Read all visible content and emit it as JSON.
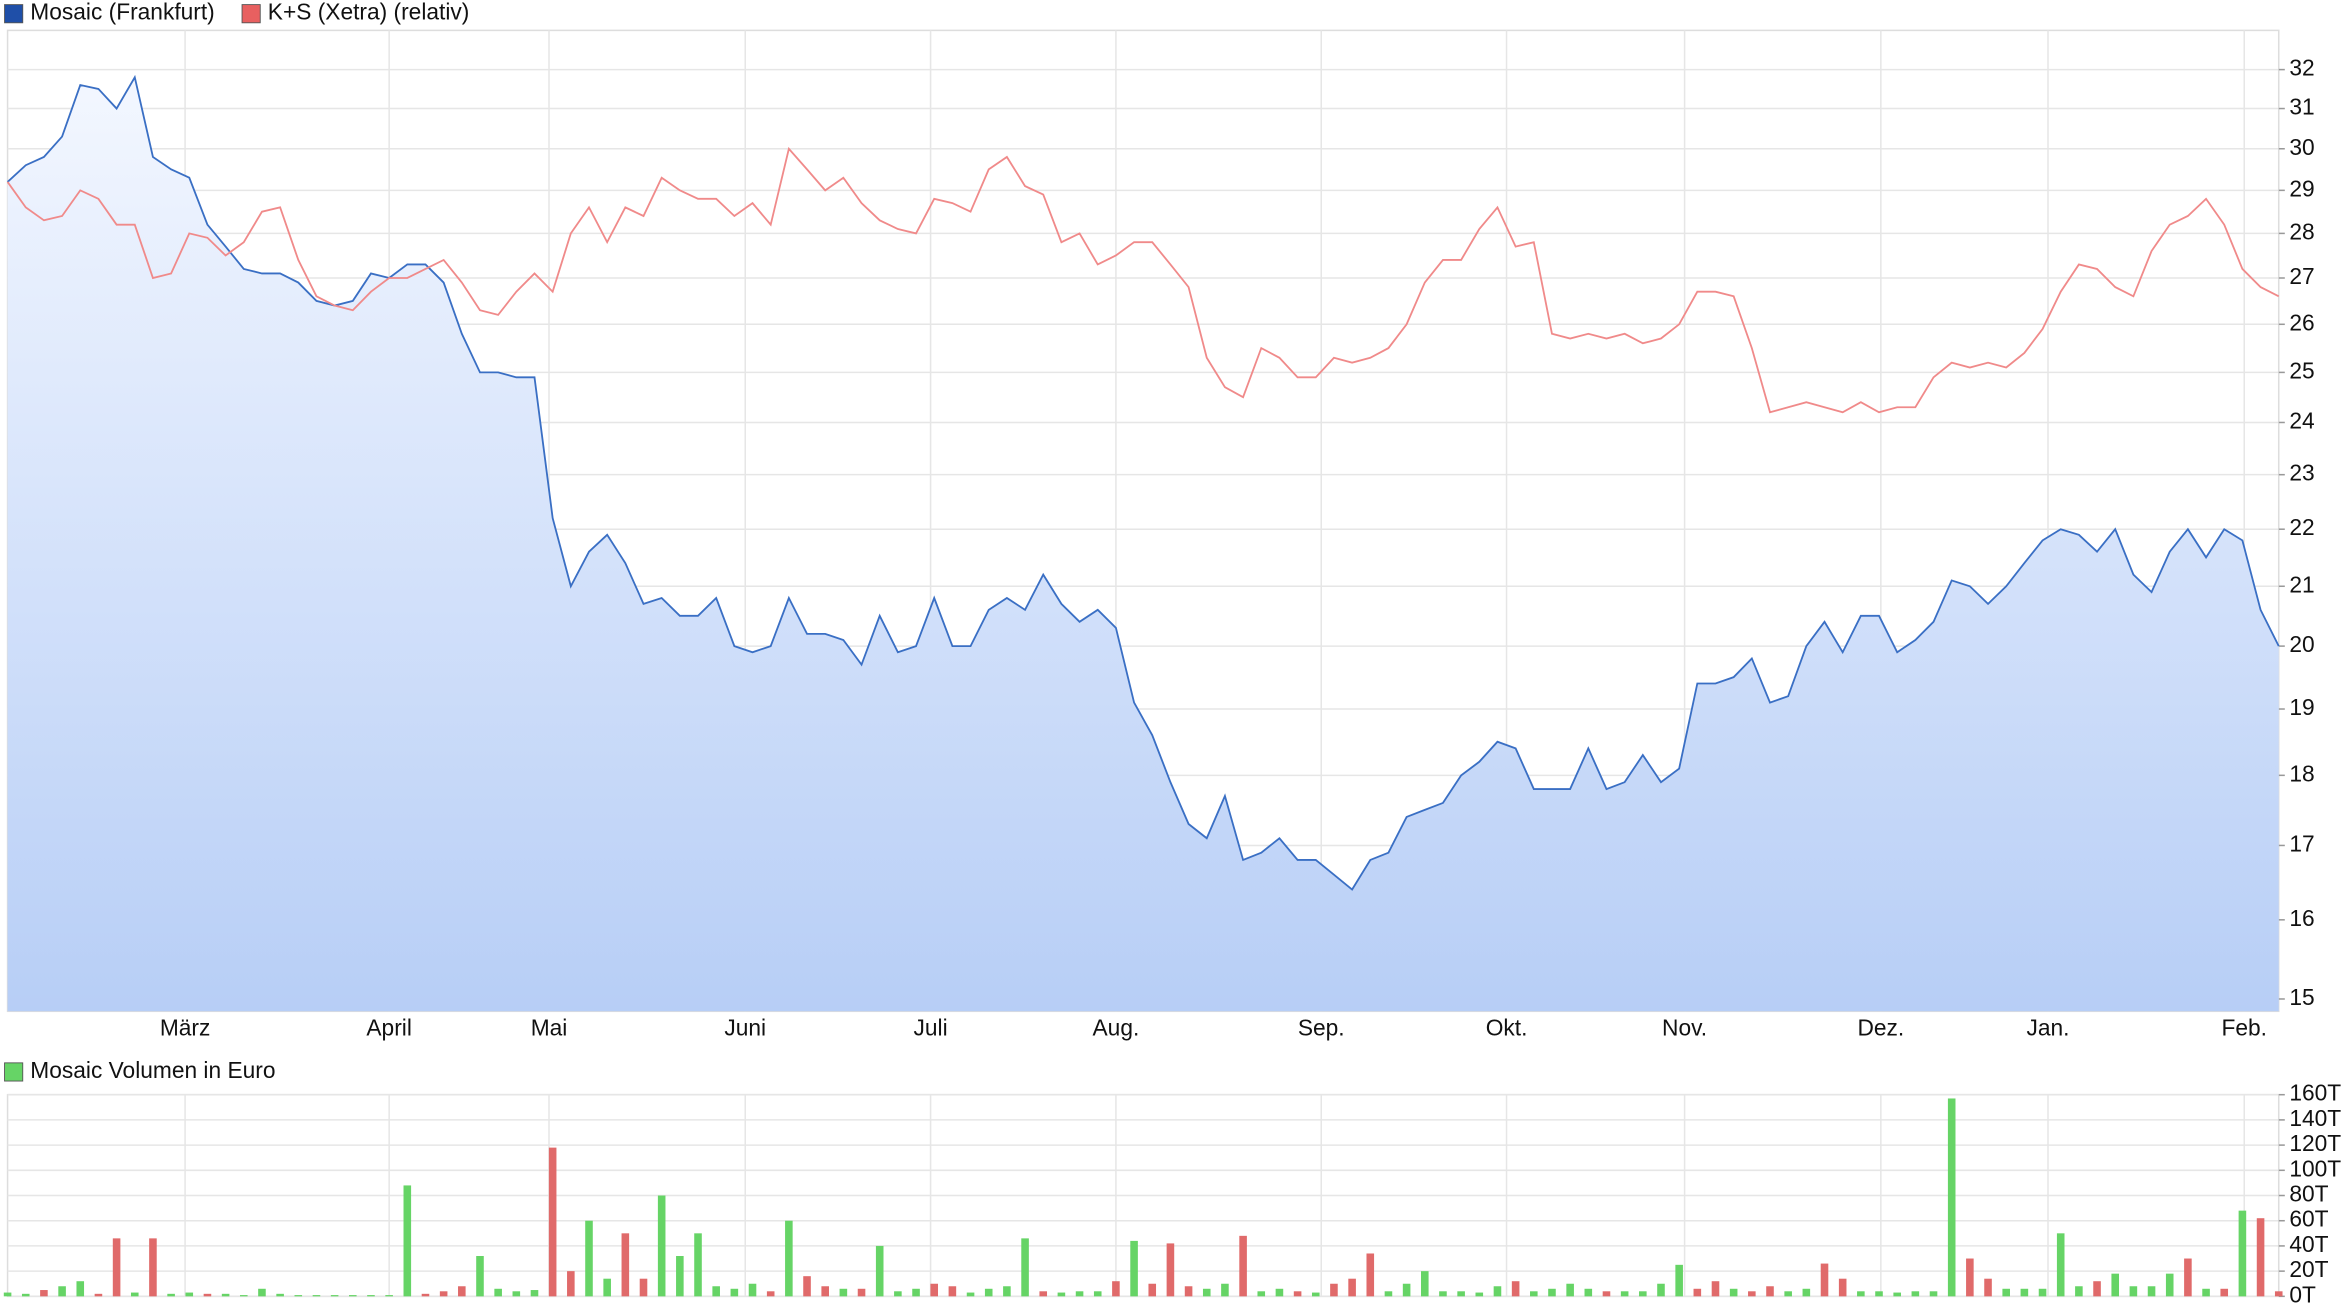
{
  "chart_data": [
    {
      "type": "line",
      "log_scale": true,
      "grid": true,
      "ylim": [
        14.85,
        33.04
      ],
      "yticks": [
        15,
        16,
        17,
        18,
        19,
        20,
        21,
        22,
        23,
        24,
        25,
        26,
        27,
        28,
        29,
        30,
        31,
        32
      ],
      "xlim": [
        0,
        125
      ],
      "xticks": [
        {
          "value": 9.77,
          "label": "März"
        },
        {
          "value": 21.0,
          "label": "April"
        },
        {
          "value": 29.8,
          "label": "Mai"
        },
        {
          "value": 40.6,
          "label": "Juni"
        },
        {
          "value": 50.8,
          "label": "Juli"
        },
        {
          "value": 61.0,
          "label": "Aug."
        },
        {
          "value": 72.3,
          "label": "Sep."
        },
        {
          "value": 82.5,
          "label": "Okt."
        },
        {
          "value": 92.3,
          "label": "Nov."
        },
        {
          "value": 103.1,
          "label": "Dez."
        },
        {
          "value": 112.3,
          "label": "Jan."
        },
        {
          "value": 123.1,
          "label": "Feb."
        }
      ],
      "series": [
        {
          "name": "Mosaic (Frankfurt)",
          "type": "area",
          "color": "#3a6fc4",
          "legend_color": "#1f4fa8",
          "values": [
            29.2,
            29.6,
            29.8,
            30.3,
            31.6,
            31.5,
            31.0,
            31.8,
            29.8,
            29.5,
            29.3,
            28.2,
            27.7,
            27.2,
            27.1,
            27.1,
            26.9,
            26.5,
            26.4,
            26.5,
            27.1,
            27.0,
            27.3,
            27.3,
            26.9,
            25.8,
            25.0,
            25.0,
            24.9,
            24.9,
            22.2,
            21.0,
            21.6,
            21.9,
            21.4,
            20.7,
            20.8,
            20.5,
            20.5,
            20.8,
            20.0,
            19.9,
            20.0,
            20.8,
            20.2,
            20.2,
            20.1,
            19.7,
            20.5,
            19.9,
            20.0,
            20.8,
            20.0,
            20.0,
            20.6,
            20.8,
            20.6,
            21.2,
            20.7,
            20.4,
            20.6,
            20.3,
            19.1,
            18.6,
            17.9,
            17.3,
            17.1,
            17.7,
            16.8,
            16.9,
            17.1,
            16.8,
            16.8,
            16.6,
            16.4,
            16.8,
            16.9,
            17.4,
            17.5,
            17.6,
            18.0,
            18.2,
            18.5,
            18.4,
            17.8,
            17.8,
            17.8,
            18.4,
            17.8,
            17.9,
            18.3,
            17.9,
            18.1,
            19.4,
            19.4,
            19.5,
            19.8,
            19.1,
            19.2,
            20.0,
            20.4,
            19.9,
            20.5,
            20.5,
            19.9,
            20.1,
            20.4,
            21.1,
            21.0,
            20.7,
            21.0,
            21.4,
            21.8,
            22.0,
            21.9,
            21.6,
            22.0,
            21.2,
            20.9,
            21.6,
            22.0,
            21.5,
            22.0,
            21.8,
            20.6,
            20.0
          ]
        },
        {
          "name": "K+S (Xetra) (relativ)",
          "type": "line",
          "color": "#f08a8a",
          "legend_color": "#e86060",
          "values": [
            29.2,
            28.6,
            28.3,
            28.4,
            29.0,
            28.8,
            28.2,
            28.2,
            27.0,
            27.1,
            28.0,
            27.9,
            27.5,
            27.8,
            28.5,
            28.6,
            27.4,
            26.6,
            26.4,
            26.3,
            26.7,
            27.0,
            27.0,
            27.2,
            27.4,
            26.9,
            26.3,
            26.2,
            26.7,
            27.1,
            26.7,
            28.0,
            28.6,
            27.8,
            28.6,
            28.4,
            29.3,
            29.0,
            28.8,
            28.8,
            28.4,
            28.7,
            28.2,
            30.0,
            29.5,
            29.0,
            29.3,
            28.7,
            28.3,
            28.1,
            28.0,
            28.8,
            28.7,
            28.5,
            29.5,
            29.8,
            29.1,
            28.9,
            27.8,
            28.0,
            27.3,
            27.5,
            27.8,
            27.8,
            27.3,
            26.8,
            25.3,
            24.7,
            24.5,
            25.5,
            25.3,
            24.9,
            24.9,
            25.3,
            25.2,
            25.3,
            25.5,
            26.0,
            26.9,
            27.4,
            27.4,
            28.1,
            28.6,
            27.7,
            27.8,
            25.8,
            25.7,
            25.8,
            25.7,
            25.8,
            25.6,
            25.7,
            26.0,
            26.7,
            26.7,
            26.6,
            25.5,
            24.2,
            24.3,
            24.4,
            24.3,
            24.2,
            24.4,
            24.2,
            24.3,
            24.3,
            24.9,
            25.2,
            25.1,
            25.2,
            25.1,
            25.4,
            25.9,
            26.7,
            27.3,
            27.2,
            26.8,
            26.6,
            27.6,
            28.2,
            28.4,
            28.8,
            28.2,
            27.2,
            26.8,
            26.6
          ]
        }
      ]
    },
    {
      "type": "bar",
      "grid": true,
      "ylim": [
        0,
        160
      ],
      "yticks": [
        {
          "value": 0,
          "label": "0T"
        },
        {
          "value": 20,
          "label": "20T"
        },
        {
          "value": 40,
          "label": "40T"
        },
        {
          "value": 60,
          "label": "60T"
        },
        {
          "value": 80,
          "label": "80T"
        },
        {
          "value": 100,
          "label": "100T"
        },
        {
          "value": 120,
          "label": "120T"
        },
        {
          "value": 140,
          "label": "140T"
        },
        {
          "value": 160,
          "label": "160T"
        }
      ],
      "xlim": [
        0,
        125
      ],
      "series": [
        {
          "name": "Mosaic Volumen in Euro",
          "color": "#66d466",
          "values": [
            3,
            2,
            5,
            8,
            12,
            2,
            46,
            3,
            46,
            2,
            3,
            2,
            2,
            1,
            6,
            2,
            1,
            1,
            1,
            1,
            1,
            1,
            88,
            2,
            4,
            8,
            32,
            6,
            4,
            5,
            118,
            20,
            60,
            14,
            50,
            14,
            80,
            32,
            50,
            8,
            6,
            10,
            4,
            60,
            16,
            8,
            6,
            6,
            40,
            4,
            6,
            10,
            8,
            3,
            6,
            8,
            46,
            4,
            3,
            4,
            4,
            12,
            44,
            10,
            42,
            8,
            6,
            10,
            48,
            4,
            6,
            4,
            3,
            10,
            14,
            34,
            4,
            10,
            20,
            4,
            4,
            3,
            8,
            12,
            4,
            6,
            10,
            6,
            4,
            4,
            4,
            10,
            25,
            6,
            12,
            6,
            4,
            8,
            4,
            6,
            26,
            14,
            4,
            4,
            3,
            4,
            4,
            157,
            30,
            14,
            6,
            6,
            6,
            50,
            8,
            12,
            18,
            8,
            8,
            18,
            30,
            6,
            6,
            68,
            62,
            4
          ],
          "colors": [
            "#66d466",
            "#66d466",
            "#e06a6a",
            "#66d466",
            "#66d466",
            "#e06a6a",
            "#e06a6a",
            "#66d466",
            "#e06a6a",
            "#66d466",
            "#66d466",
            "#e06a6a",
            "#66d466",
            "#66d466",
            "#66d466",
            "#66d466",
            "#66d466",
            "#66d466",
            "#66d466",
            "#66d466",
            "#66d466",
            "#66d466",
            "#66d466",
            "#e06a6a",
            "#e06a6a",
            "#e06a6a",
            "#66d466",
            "#66d466",
            "#66d466",
            "#66d466",
            "#e06a6a",
            "#e06a6a",
            "#66d466",
            "#66d466",
            "#e06a6a",
            "#e06a6a",
            "#66d466",
            "#66d466",
            "#66d466",
            "#66d466",
            "#66d466",
            "#66d466",
            "#e06a6a",
            "#66d466",
            "#e06a6a",
            "#e06a6a",
            "#66d466",
            "#e06a6a",
            "#66d466",
            "#66d466",
            "#66d466",
            "#e06a6a",
            "#e06a6a",
            "#66d466",
            "#66d466",
            "#66d466",
            "#66d466",
            "#e06a6a",
            "#66d466",
            "#66d466",
            "#66d466",
            "#e06a6a",
            "#66d466",
            "#e06a6a",
            "#e06a6a",
            "#e06a6a",
            "#66d466",
            "#66d466",
            "#e06a6a",
            "#66d466",
            "#66d466",
            "#e06a6a",
            "#66d466",
            "#e06a6a",
            "#e06a6a",
            "#e06a6a",
            "#66d466",
            "#66d466",
            "#66d466",
            "#66d466",
            "#66d466",
            "#66d466",
            "#66d466",
            "#e06a6a",
            "#66d466",
            "#66d466",
            "#66d466",
            "#66d466",
            "#e06a6a",
            "#66d466",
            "#66d466",
            "#66d466",
            "#66d466",
            "#e06a6a",
            "#e06a6a",
            "#66d466",
            "#e06a6a",
            "#e06a6a",
            "#66d466",
            "#66d466",
            "#e06a6a",
            "#e06a6a",
            "#66d466",
            "#66d466",
            "#66d466",
            "#66d466",
            "#66d466",
            "#66d466",
            "#e06a6a",
            "#e06a6a",
            "#66d466",
            "#66d466",
            "#66d466",
            "#66d466",
            "#66d466",
            "#e06a6a",
            "#66d466",
            "#66d466",
            "#66d466",
            "#66d466",
            "#e06a6a",
            "#66d466",
            "#e06a6a",
            "#66d466",
            "#e06a6a",
            "#e06a6a"
          ]
        }
      ]
    }
  ]
}
